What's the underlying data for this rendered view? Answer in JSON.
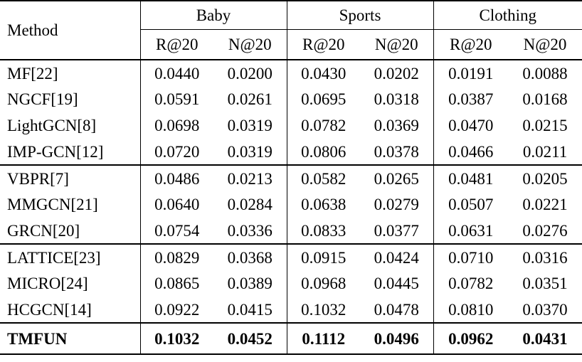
{
  "table": {
    "columns": {
      "method_header": "Method",
      "groups": [
        {
          "label": "Baby",
          "sub": [
            "R@20",
            "N@20"
          ]
        },
        {
          "label": "Sports",
          "sub": [
            "R@20",
            "N@20"
          ]
        },
        {
          "label": "Clothing",
          "sub": [
            "R@20",
            "N@20"
          ]
        }
      ]
    },
    "sections": [
      {
        "rows": [
          {
            "method": "MF[22]",
            "values": [
              "0.0440",
              "0.0200",
              "0.0430",
              "0.0202",
              "0.0191",
              "0.0088"
            ],
            "bold": false
          },
          {
            "method": "NGCF[19]",
            "values": [
              "0.0591",
              "0.0261",
              "0.0695",
              "0.0318",
              "0.0387",
              "0.0168"
            ],
            "bold": false
          },
          {
            "method": "LightGCN[8]",
            "values": [
              "0.0698",
              "0.0319",
              "0.0782",
              "0.0369",
              "0.0470",
              "0.0215"
            ],
            "bold": false
          },
          {
            "method": "IMP-GCN[12]",
            "values": [
              "0.0720",
              "0.0319",
              "0.0806",
              "0.0378",
              "0.0466",
              "0.0211"
            ],
            "bold": false
          }
        ]
      },
      {
        "rows": [
          {
            "method": "VBPR[7]",
            "values": [
              "0.0486",
              "0.0213",
              "0.0582",
              "0.0265",
              "0.0481",
              "0.0205"
            ],
            "bold": false
          },
          {
            "method": "MMGCN[21]",
            "values": [
              "0.0640",
              "0.0284",
              "0.0638",
              "0.0279",
              "0.0507",
              "0.0221"
            ],
            "bold": false
          },
          {
            "method": "GRCN[20]",
            "values": [
              "0.0754",
              "0.0336",
              "0.0833",
              "0.0377",
              "0.0631",
              "0.0276"
            ],
            "bold": false
          }
        ]
      },
      {
        "rows": [
          {
            "method": "LATTICE[23]",
            "values": [
              "0.0829",
              "0.0368",
              "0.0915",
              "0.0424",
              "0.0710",
              "0.0316"
            ],
            "bold": false
          },
          {
            "method": "MICRO[24]",
            "values": [
              "0.0865",
              "0.0389",
              "0.0968",
              "0.0445",
              "0.0782",
              "0.0351"
            ],
            "bold": false
          },
          {
            "method": "HCGCN[14]",
            "values": [
              "0.0922",
              "0.0415",
              "0.1032",
              "0.0478",
              "0.0810",
              "0.0370"
            ],
            "bold": false
          }
        ]
      },
      {
        "rows": [
          {
            "method": "TMFUN",
            "values": [
              "0.1032",
              "0.0452",
              "0.1112",
              "0.0496",
              "0.0962",
              "0.0431"
            ],
            "bold": true
          }
        ]
      }
    ],
    "colors": {
      "text": "#000000",
      "background": "#ffffff",
      "rule": "#000000"
    }
  }
}
